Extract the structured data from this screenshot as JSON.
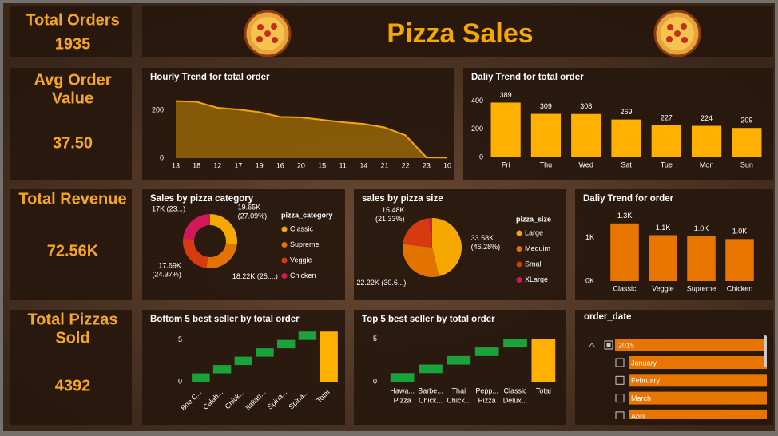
{
  "title": "Pizza Sales",
  "kpis": [
    {
      "label": [
        "Total Orders"
      ],
      "value": "1935"
    },
    {
      "label": [
        "Avg Order",
        "Value"
      ],
      "value": "37.50"
    },
    {
      "label": [
        "Total Revenue"
      ],
      "value": "72.56K"
    },
    {
      "label": [
        "Total Pizzas",
        "Sold"
      ],
      "value": "4392"
    }
  ],
  "chart_data": [
    {
      "type": "area",
      "title": "Hourly Trend for total order",
      "categories": [
        "13",
        "18",
        "12",
        "17",
        "19",
        "16",
        "20",
        "15",
        "11",
        "14",
        "21",
        "22",
        "23",
        "10"
      ],
      "values": [
        238,
        235,
        210,
        203,
        192,
        172,
        170,
        160,
        150,
        143,
        128,
        95,
        3,
        2
      ],
      "color": "#f5a800",
      "ylim": [
        0,
        260
      ],
      "yticks": [
        0,
        200
      ]
    },
    {
      "type": "bar",
      "title": "Daliy Trend for total order",
      "categories": [
        "Fri",
        "Thu",
        "Wed",
        "Sat",
        "Tue",
        "Mon",
        "Sun"
      ],
      "values": [
        389,
        309,
        308,
        269,
        227,
        224,
        209
      ],
      "color": "#ffb000",
      "ylim": [
        0,
        420
      ],
      "yticks": [
        0,
        200,
        400
      ]
    },
    {
      "type": "donut",
      "title": "Sales by pizza category",
      "legend_title": "pizza_category",
      "categories": [
        "Classic",
        "Supreme",
        "Veggie",
        "Chicken"
      ],
      "values": [
        19650,
        18220,
        17690,
        17000
      ],
      "value_labels": [
        [
          "19.65K",
          "(27.09%)"
        ],
        [
          "18.22K (25....)"
        ],
        [
          "17.69K",
          "(24.37%)"
        ],
        [
          "17K (23...)"
        ]
      ],
      "colors": [
        "#f5a800",
        "#e27300",
        "#d83a10",
        "#d0185a"
      ]
    },
    {
      "type": "pie",
      "title": "sales by pizza size",
      "legend_title": "pizza_size",
      "categories": [
        "Large",
        "Meduim",
        "Small",
        "XLarge"
      ],
      "values": [
        33580,
        22220,
        15480,
        1280
      ],
      "value_labels": [
        [
          "33.58K",
          "(46.28%)"
        ],
        [
          "22.22K (30.6...)"
        ],
        [
          "15.48K",
          "(21.33%)"
        ],
        null
      ],
      "colors": [
        "#f5a800",
        "#e27300",
        "#d83a10",
        "#d0185a"
      ]
    },
    {
      "type": "bar",
      "title": "Daliy Trend for order",
      "categories": [
        "Classic",
        "Veggie",
        "Supreme",
        "Chicken"
      ],
      "values": [
        1330,
        1060,
        1040,
        970
      ],
      "value_labels": [
        "1.3K",
        "1.1K",
        "1.0K",
        "1.0K"
      ],
      "color": "#e87500",
      "ylim": [
        0,
        1400
      ],
      "yticks": [
        {
          "value": 0,
          "label": "0K"
        },
        {
          "value": 1000,
          "label": "1K"
        }
      ]
    },
    {
      "type": "waterfall",
      "title": "Bottom 5 best seller by total order",
      "categories": [
        [
          "Brie C..."
        ],
        [
          "Calab..."
        ],
        [
          "Chick..."
        ],
        [
          "Italian..."
        ],
        [
          "Spina..."
        ],
        [
          "Spina..."
        ]
      ],
      "values": [
        1,
        1,
        1,
        1,
        1,
        1
      ],
      "total_label": "Total",
      "increase_color": "#1aa33a",
      "total_color": "#ffb000",
      "ylim": [
        0,
        6.5
      ],
      "yticks": [
        0,
        5
      ]
    },
    {
      "type": "waterfall",
      "title": "Top 5 best seller by total order",
      "categories": [
        [
          "Hawa...",
          "Pizza"
        ],
        [
          "Barbe...",
          "Chick..."
        ],
        [
          "Thai",
          "Chick..."
        ],
        [
          "Pepp...",
          "Pizza"
        ],
        [
          "Classic",
          "Delux..."
        ]
      ],
      "values": [
        1,
        1,
        1,
        1,
        1
      ],
      "total_label": "Total",
      "increase_color": "#1aa33a",
      "total_color": "#ffb000",
      "ylim": [
        0,
        5.6
      ],
      "yticks": [
        0,
        5
      ]
    }
  ],
  "slicer": {
    "title": "order_date",
    "year": "2015",
    "items": [
      "January",
      "February",
      "March",
      "April"
    ]
  }
}
